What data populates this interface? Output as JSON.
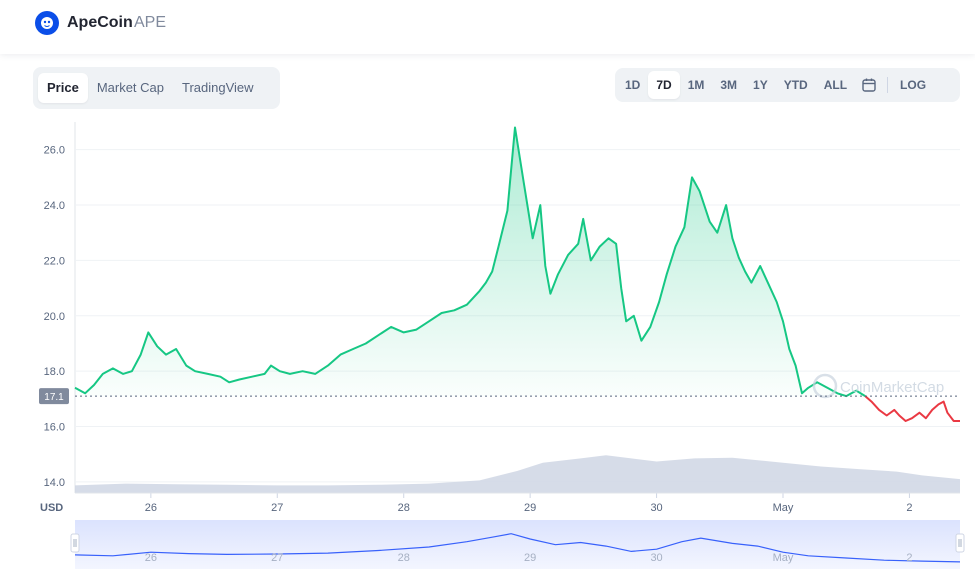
{
  "header": {
    "coin_name": "ApeCoin",
    "coin_symbol": "APE",
    "logo_icon": "apecoin-logo-icon"
  },
  "view_tabs": [
    {
      "label": "Price",
      "active": true
    },
    {
      "label": "Market Cap",
      "active": false
    },
    {
      "label": "TradingView",
      "active": false
    }
  ],
  "range_buttons": [
    {
      "label": "1D",
      "active": false
    },
    {
      "label": "7D",
      "active": true
    },
    {
      "label": "1M",
      "active": false
    },
    {
      "label": "3M",
      "active": false
    },
    {
      "label": "1Y",
      "active": false
    },
    {
      "label": "YTD",
      "active": false
    },
    {
      "label": "ALL",
      "active": false
    }
  ],
  "calendar_icon": "calendar-icon",
  "log_label": "LOG",
  "watermark": "CoinMarketCap",
  "currency_label": "USD",
  "colors": {
    "up": "#16c784",
    "down": "#ea3943",
    "volume": "#cfd6e4",
    "navigator": "#3861fb",
    "active_blue": "#3861fb"
  },
  "chart_data": {
    "type": "line",
    "title": "",
    "xlabel": "",
    "ylabel": "",
    "x_ticks": [
      "26",
      "27",
      "28",
      "29",
      "30",
      "May",
      "2"
    ],
    "y_ticks": [
      "26.0",
      "24.0",
      "22.0",
      "20.0",
      "18.0",
      "16.0",
      "14.0"
    ],
    "ylim": [
      13.6,
      27.0
    ],
    "xlim_days": [
      25.4,
      32.4
    ],
    "reference_price": "17.1",
    "grid": true,
    "series": [
      {
        "values": [
          [
            25.4,
            17.4
          ],
          [
            25.48,
            17.2
          ],
          [
            25.55,
            17.5
          ],
          [
            25.62,
            17.9
          ],
          [
            25.7,
            18.1
          ],
          [
            25.78,
            17.9
          ],
          [
            25.85,
            18.0
          ],
          [
            25.92,
            18.6
          ],
          [
            25.98,
            19.4
          ],
          [
            26.05,
            18.9
          ],
          [
            26.12,
            18.6
          ],
          [
            26.2,
            18.8
          ],
          [
            26.28,
            18.2
          ],
          [
            26.35,
            18.0
          ],
          [
            26.45,
            17.9
          ],
          [
            26.55,
            17.8
          ],
          [
            26.62,
            17.6
          ],
          [
            26.7,
            17.7
          ],
          [
            26.8,
            17.8
          ],
          [
            26.9,
            17.9
          ],
          [
            26.95,
            18.2
          ],
          [
            27.02,
            18.0
          ],
          [
            27.1,
            17.9
          ],
          [
            27.2,
            18.0
          ],
          [
            27.3,
            17.9
          ],
          [
            27.4,
            18.2
          ],
          [
            27.5,
            18.6
          ],
          [
            27.6,
            18.8
          ],
          [
            27.7,
            19.0
          ],
          [
            27.8,
            19.3
          ],
          [
            27.9,
            19.6
          ],
          [
            28.0,
            19.4
          ],
          [
            28.1,
            19.5
          ],
          [
            28.2,
            19.8
          ],
          [
            28.3,
            20.1
          ],
          [
            28.4,
            20.2
          ],
          [
            28.5,
            20.4
          ],
          [
            28.6,
            20.9
          ],
          [
            28.65,
            21.2
          ],
          [
            28.7,
            21.6
          ],
          [
            28.75,
            22.5
          ],
          [
            28.82,
            23.8
          ],
          [
            28.88,
            26.8
          ],
          [
            28.95,
            24.8
          ],
          [
            29.02,
            22.8
          ],
          [
            29.08,
            24.0
          ],
          [
            29.12,
            21.8
          ],
          [
            29.16,
            20.8
          ],
          [
            29.22,
            21.5
          ],
          [
            29.3,
            22.2
          ],
          [
            29.38,
            22.6
          ],
          [
            29.42,
            23.5
          ],
          [
            29.48,
            22.0
          ],
          [
            29.55,
            22.5
          ],
          [
            29.62,
            22.8
          ],
          [
            29.68,
            22.6
          ],
          [
            29.72,
            21.0
          ],
          [
            29.76,
            19.8
          ],
          [
            29.82,
            20.0
          ],
          [
            29.88,
            19.1
          ],
          [
            29.95,
            19.6
          ],
          [
            30.02,
            20.5
          ],
          [
            30.08,
            21.5
          ],
          [
            30.15,
            22.5
          ],
          [
            30.22,
            23.2
          ],
          [
            30.28,
            25.0
          ],
          [
            30.34,
            24.5
          ],
          [
            30.42,
            23.4
          ],
          [
            30.48,
            23.0
          ],
          [
            30.55,
            24.0
          ],
          [
            30.6,
            22.8
          ],
          [
            30.65,
            22.1
          ],
          [
            30.7,
            21.6
          ],
          [
            30.75,
            21.2
          ],
          [
            30.82,
            21.8
          ],
          [
            30.88,
            21.2
          ],
          [
            30.95,
            20.5
          ],
          [
            31.0,
            19.8
          ],
          [
            31.05,
            18.8
          ],
          [
            31.1,
            18.2
          ],
          [
            31.15,
            17.2
          ],
          [
            31.2,
            17.4
          ],
          [
            31.27,
            17.6
          ],
          [
            31.35,
            17.4
          ],
          [
            31.43,
            17.2
          ],
          [
            31.5,
            17.1
          ],
          [
            31.58,
            17.3
          ],
          [
            31.65,
            17.1
          ]
        ]
      },
      {
        "values": [
          [
            31.65,
            17.1
          ],
          [
            31.7,
            16.9
          ],
          [
            31.76,
            16.6
          ],
          [
            31.82,
            16.4
          ],
          [
            31.88,
            16.6
          ],
          [
            31.92,
            16.4
          ],
          [
            31.97,
            16.2
          ],
          [
            32.02,
            16.3
          ],
          [
            32.08,
            16.5
          ],
          [
            32.13,
            16.3
          ],
          [
            32.18,
            16.6
          ],
          [
            32.23,
            16.8
          ],
          [
            32.27,
            16.9
          ],
          [
            32.3,
            16.5
          ],
          [
            32.35,
            16.2
          ],
          [
            32.4,
            16.2
          ]
        ]
      }
    ],
    "volume": [
      [
        25.4,
        0.12
      ],
      [
        25.8,
        0.15
      ],
      [
        26.2,
        0.14
      ],
      [
        26.6,
        0.13
      ],
      [
        27.0,
        0.12
      ],
      [
        27.4,
        0.12
      ],
      [
        27.8,
        0.13
      ],
      [
        28.2,
        0.15
      ],
      [
        28.6,
        0.2
      ],
      [
        28.9,
        0.35
      ],
      [
        29.1,
        0.48
      ],
      [
        29.4,
        0.55
      ],
      [
        29.6,
        0.6
      ],
      [
        29.8,
        0.55
      ],
      [
        30.0,
        0.5
      ],
      [
        30.3,
        0.55
      ],
      [
        30.6,
        0.56
      ],
      [
        31.0,
        0.48
      ],
      [
        31.3,
        0.42
      ],
      [
        31.6,
        0.38
      ],
      [
        31.9,
        0.34
      ],
      [
        32.1,
        0.28
      ],
      [
        32.4,
        0.22
      ]
    ],
    "navigator": [
      [
        25.4,
        0.32
      ],
      [
        25.7,
        0.3
      ],
      [
        26.0,
        0.38
      ],
      [
        26.3,
        0.35
      ],
      [
        26.6,
        0.33
      ],
      [
        27.0,
        0.34
      ],
      [
        27.4,
        0.36
      ],
      [
        27.8,
        0.42
      ],
      [
        28.2,
        0.5
      ],
      [
        28.5,
        0.62
      ],
      [
        28.7,
        0.72
      ],
      [
        28.85,
        0.8
      ],
      [
        29.0,
        0.68
      ],
      [
        29.2,
        0.55
      ],
      [
        29.4,
        0.6
      ],
      [
        29.6,
        0.52
      ],
      [
        29.8,
        0.4
      ],
      [
        30.0,
        0.45
      ],
      [
        30.2,
        0.62
      ],
      [
        30.35,
        0.7
      ],
      [
        30.6,
        0.58
      ],
      [
        30.8,
        0.52
      ],
      [
        31.0,
        0.38
      ],
      [
        31.2,
        0.3
      ],
      [
        31.5,
        0.25
      ],
      [
        31.8,
        0.2
      ],
      [
        32.1,
        0.18
      ],
      [
        32.4,
        0.16
      ]
    ]
  }
}
